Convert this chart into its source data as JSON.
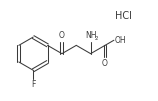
{
  "background_color": "#ffffff",
  "line_color": "#3a3a3a",
  "text_color": "#3a3a3a",
  "hcl_label": "HCl",
  "F_label": "F",
  "O1_label": "O",
  "NH2_label": "NH",
  "NH2_sub": "2",
  "OH_label": "OH",
  "O2_label": "O",
  "figsize": [
    1.58,
    1.01
  ],
  "dpi": 100
}
